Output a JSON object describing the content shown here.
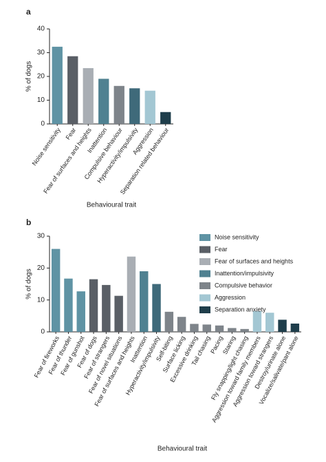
{
  "chart_data": [
    {
      "type": "bar",
      "panel": "a",
      "ylabel": "% of dogs",
      "xlabel": "Behavioural trait",
      "categories": [
        "Noise sensitivity",
        "Fear",
        "Fear of surfaces and heights",
        "Inattention",
        "Compulsive behaviour",
        "Hyperactivity/impulsivity",
        "Aggression",
        "Separation related behaviour"
      ],
      "values": [
        32.5,
        28.5,
        23.5,
        19,
        16,
        15,
        14,
        5
      ],
      "colors": [
        "#5f93a4",
        "#5a5f66",
        "#a9aeb4",
        "#4f8191",
        "#7e848a",
        "#3f6a7a",
        "#a3c7d3",
        "#1f3e4b"
      ],
      "ylim": [
        0,
        40
      ],
      "yticks": [
        0,
        10,
        20,
        30,
        40
      ]
    },
    {
      "type": "bar",
      "panel": "b",
      "ylabel": "% of dogs",
      "xlabel": "Behavioural trait",
      "categories": [
        "Fear of fireworks",
        "Fear of thunder",
        "Fear of gunshot",
        "Fear of dogs",
        "Fear of strangers",
        "Fear of novel situations",
        "Fear of surfaces and heights",
        "Inattention",
        "Hyperactivity/impulsivity",
        "Self-biting",
        "Surface licking",
        "Excessive drinking",
        "Tail chasing",
        "Pacing",
        "Staring",
        "Fly snapping/light chasing",
        "Aggression toward family members",
        "Aggression toward strangers",
        "Destroy/urinate alone",
        "Vocalize/salivate/pant alone"
      ],
      "values": [
        26,
        16.7,
        12.7,
        16.5,
        14.7,
        11.3,
        23.6,
        19,
        15,
        6.3,
        4.7,
        2.5,
        2.3,
        2,
        1.2,
        0.9,
        6.5,
        6,
        3.8,
        2.6
      ],
      "colors": [
        "#5f93a4",
        "#5f93a4",
        "#5f93a4",
        "#5a5f66",
        "#5a5f66",
        "#5a5f66",
        "#a9aeb4",
        "#4f8191",
        "#3f6a7a",
        "#7e848a",
        "#7e848a",
        "#7e848a",
        "#7e848a",
        "#7e848a",
        "#7e848a",
        "#7e848a",
        "#a3c7d3",
        "#a3c7d3",
        "#1f3e4b",
        "#1f3e4b"
      ],
      "legend": [
        {
          "name": "Noise sensitivity",
          "color": "#5f93a4"
        },
        {
          "name": "Fear",
          "color": "#5a5f66"
        },
        {
          "name": "Fear of surfaces and heights",
          "color": "#a9aeb4"
        },
        {
          "name": "Inattention/impulsivity",
          "color": "#4f8191"
        },
        {
          "name": "Compulsive behavior",
          "color": "#7e848a"
        },
        {
          "name": "Aggression",
          "color": "#a3c7d3"
        },
        {
          "name": "Separation anxiety",
          "color": "#1f3e4b"
        }
      ],
      "ylim": [
        0,
        30
      ],
      "yticks": [
        0,
        10,
        20,
        30
      ]
    }
  ]
}
